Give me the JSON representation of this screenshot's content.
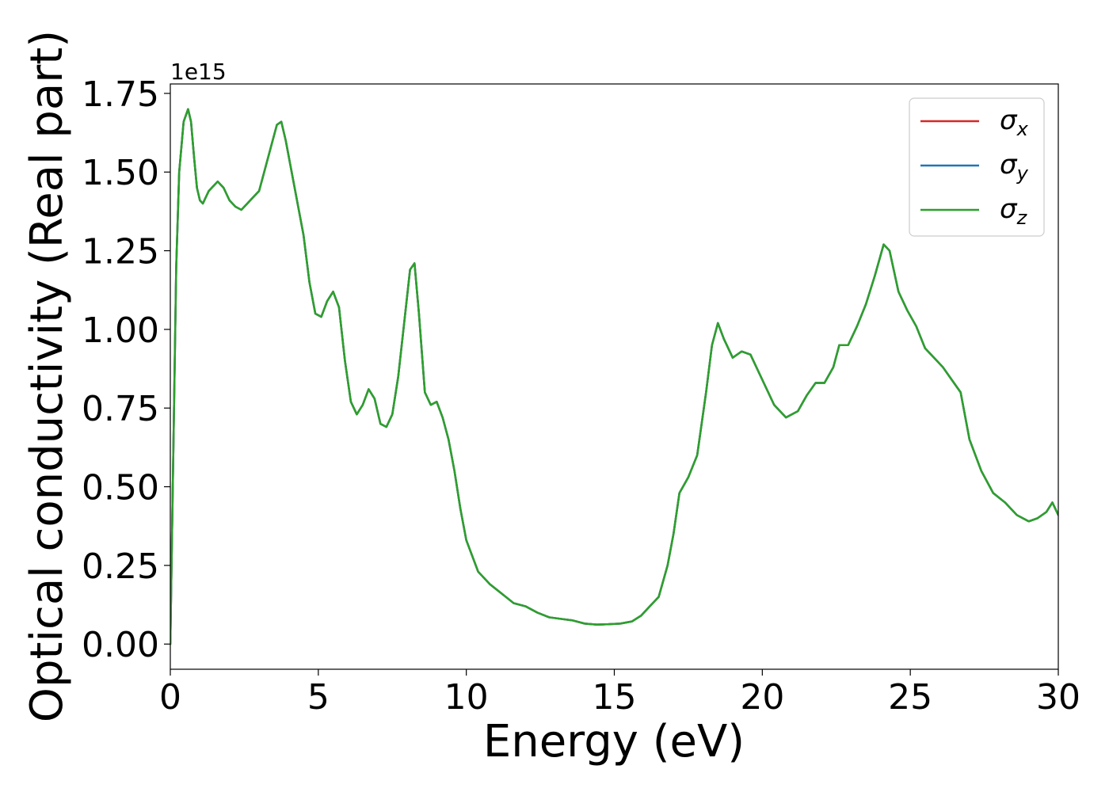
{
  "chart_data": {
    "type": "line",
    "title": "",
    "xlabel": "Energy (eV)",
    "ylabel": "Optical conductivity (Real part)",
    "y_offset_label": "1e15",
    "xlim": [
      0,
      30
    ],
    "ylim": [
      -0.08,
      1.78
    ],
    "y_scale_note": "values in units of 1e15",
    "x_ticks": [
      0,
      5,
      10,
      15,
      20,
      25,
      30
    ],
    "x_tick_labels": [
      "0",
      "5",
      "10",
      "15",
      "20",
      "25",
      "30"
    ],
    "y_ticks": [
      0.0,
      0.25,
      0.5,
      0.75,
      1.0,
      1.25,
      1.5,
      1.75
    ],
    "y_tick_labels": [
      "0.00",
      "0.25",
      "0.50",
      "0.75",
      "1.00",
      "1.25",
      "1.50",
      "1.75"
    ],
    "grid": false,
    "legend": {
      "position": "top-right",
      "entries": [
        {
          "symbol": "σ",
          "sub": "x",
          "color": "#d62728"
        },
        {
          "symbol": "σ",
          "sub": "y",
          "color": "#1f77b4"
        },
        {
          "symbol": "σ",
          "sub": "z",
          "color": "#2ca02c"
        }
      ]
    },
    "x": [
      0,
      0.1,
      0.2,
      0.3,
      0.45,
      0.6,
      0.7,
      0.8,
      0.9,
      1.0,
      1.1,
      1.2,
      1.3,
      1.4,
      1.6,
      1.8,
      2.0,
      2.2,
      2.4,
      2.6,
      2.8,
      3.0,
      3.2,
      3.4,
      3.6,
      3.75,
      3.9,
      4.1,
      4.3,
      4.5,
      4.7,
      4.9,
      5.1,
      5.3,
      5.5,
      5.7,
      5.9,
      6.1,
      6.3,
      6.5,
      6.7,
      6.9,
      7.1,
      7.3,
      7.5,
      7.7,
      7.9,
      8.1,
      8.25,
      8.4,
      8.6,
      8.8,
      9.0,
      9.2,
      9.4,
      9.6,
      9.8,
      10.0,
      10.4,
      10.8,
      11.2,
      11.6,
      12.0,
      12.4,
      12.8,
      13.2,
      13.6,
      14.0,
      14.4,
      14.8,
      15.2,
      15.6,
      15.9,
      16.2,
      16.5,
      16.8,
      17.0,
      17.2,
      17.5,
      17.8,
      18.1,
      18.3,
      18.5,
      18.7,
      19.0,
      19.3,
      19.6,
      20.0,
      20.4,
      20.8,
      21.2,
      21.5,
      21.8,
      22.1,
      22.4,
      22.6,
      22.9,
      23.2,
      23.5,
      23.8,
      24.1,
      24.3,
      24.6,
      24.9,
      25.2,
      25.5,
      25.8,
      26.1,
      26.4,
      26.7,
      27.0,
      27.4,
      27.8,
      28.2,
      28.6,
      29.0,
      29.3,
      29.6,
      29.8,
      30.0
    ],
    "series": [
      {
        "values": [
          0.0,
          0.6,
          1.2,
          1.5,
          1.66,
          1.7,
          1.66,
          1.55,
          1.45,
          1.41,
          1.4,
          1.42,
          1.44,
          1.45,
          1.47,
          1.45,
          1.41,
          1.39,
          1.38,
          1.4,
          1.42,
          1.44,
          1.51,
          1.58,
          1.65,
          1.66,
          1.6,
          1.5,
          1.4,
          1.3,
          1.15,
          1.05,
          1.04,
          1.09,
          1.12,
          1.07,
          0.9,
          0.77,
          0.73,
          0.76,
          0.81,
          0.78,
          0.7,
          0.69,
          0.73,
          0.85,
          1.02,
          1.19,
          1.21,
          1.05,
          0.8,
          0.76,
          0.77,
          0.72,
          0.65,
          0.55,
          0.43,
          0.33,
          0.23,
          0.19,
          0.16,
          0.13,
          0.12,
          0.1,
          0.085,
          0.08,
          0.075,
          0.065,
          0.062,
          0.063,
          0.065,
          0.072,
          0.09,
          0.12,
          0.15,
          0.25,
          0.35,
          0.48,
          0.53,
          0.6,
          0.8,
          0.95,
          1.02,
          0.97,
          0.91,
          0.93,
          0.92,
          0.84,
          0.76,
          0.72,
          0.74,
          0.79,
          0.83,
          0.83,
          0.88,
          0.95,
          0.95,
          1.01,
          1.08,
          1.17,
          1.27,
          1.25,
          1.12,
          1.06,
          1.01,
          0.94,
          0.91,
          0.88,
          0.84,
          0.8,
          0.65,
          0.55,
          0.48,
          0.45,
          0.41,
          0.39,
          0.4,
          0.42,
          0.45,
          0.41
        ]
      },
      {
        "values": [
          0.0,
          0.6,
          1.2,
          1.5,
          1.66,
          1.7,
          1.66,
          1.55,
          1.45,
          1.41,
          1.4,
          1.42,
          1.44,
          1.45,
          1.47,
          1.45,
          1.41,
          1.39,
          1.38,
          1.4,
          1.42,
          1.44,
          1.51,
          1.58,
          1.65,
          1.66,
          1.6,
          1.5,
          1.4,
          1.3,
          1.15,
          1.05,
          1.04,
          1.09,
          1.12,
          1.07,
          0.9,
          0.77,
          0.73,
          0.76,
          0.81,
          0.78,
          0.7,
          0.69,
          0.73,
          0.85,
          1.02,
          1.19,
          1.21,
          1.05,
          0.8,
          0.76,
          0.77,
          0.72,
          0.65,
          0.55,
          0.43,
          0.33,
          0.23,
          0.19,
          0.16,
          0.13,
          0.12,
          0.1,
          0.085,
          0.08,
          0.075,
          0.065,
          0.062,
          0.063,
          0.065,
          0.072,
          0.09,
          0.12,
          0.15,
          0.25,
          0.35,
          0.48,
          0.53,
          0.6,
          0.8,
          0.95,
          1.02,
          0.97,
          0.91,
          0.93,
          0.92,
          0.84,
          0.76,
          0.72,
          0.74,
          0.79,
          0.83,
          0.83,
          0.88,
          0.95,
          0.95,
          1.01,
          1.08,
          1.17,
          1.27,
          1.25,
          1.12,
          1.06,
          1.01,
          0.94,
          0.91,
          0.88,
          0.84,
          0.8,
          0.65,
          0.55,
          0.48,
          0.45,
          0.41,
          0.39,
          0.4,
          0.42,
          0.45,
          0.41
        ]
      },
      {
        "values": [
          0.0,
          0.6,
          1.2,
          1.5,
          1.66,
          1.7,
          1.66,
          1.55,
          1.45,
          1.41,
          1.4,
          1.42,
          1.44,
          1.45,
          1.47,
          1.45,
          1.41,
          1.39,
          1.38,
          1.4,
          1.42,
          1.44,
          1.51,
          1.58,
          1.65,
          1.66,
          1.6,
          1.5,
          1.4,
          1.3,
          1.15,
          1.05,
          1.04,
          1.09,
          1.12,
          1.07,
          0.9,
          0.77,
          0.73,
          0.76,
          0.81,
          0.78,
          0.7,
          0.69,
          0.73,
          0.85,
          1.02,
          1.19,
          1.21,
          1.05,
          0.8,
          0.76,
          0.77,
          0.72,
          0.65,
          0.55,
          0.43,
          0.33,
          0.23,
          0.19,
          0.16,
          0.13,
          0.12,
          0.1,
          0.085,
          0.08,
          0.075,
          0.065,
          0.062,
          0.063,
          0.065,
          0.072,
          0.09,
          0.12,
          0.15,
          0.25,
          0.35,
          0.48,
          0.53,
          0.6,
          0.8,
          0.95,
          1.02,
          0.97,
          0.91,
          0.93,
          0.92,
          0.84,
          0.76,
          0.72,
          0.74,
          0.79,
          0.83,
          0.83,
          0.88,
          0.95,
          0.95,
          1.01,
          1.08,
          1.17,
          1.27,
          1.25,
          1.12,
          1.06,
          1.01,
          0.94,
          0.91,
          0.88,
          0.84,
          0.8,
          0.65,
          0.55,
          0.48,
          0.45,
          0.41,
          0.39,
          0.4,
          0.42,
          0.45,
          0.41
        ]
      }
    ]
  }
}
